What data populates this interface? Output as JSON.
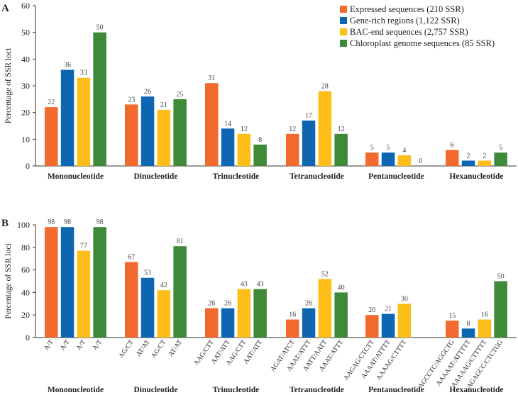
{
  "chart_data": [
    {
      "type": "bar",
      "panel_label": "A",
      "ylabel": "Percentage of SSR loci",
      "ylim": [
        0,
        60
      ],
      "yticks": [
        0,
        10,
        20,
        30,
        40,
        50,
        60
      ],
      "grid": false,
      "legend_position": "top-right",
      "categories": [
        "Mononucleotide",
        "Dinucleotide",
        "Trinucleotide",
        "Tetranucleotide",
        "Pentanucleotide",
        "Hexanucleotide"
      ],
      "series": [
        {
          "name": "Expressed sequences (210 SSR)",
          "color": "#F26A2E",
          "values": [
            22,
            23,
            31,
            12,
            5,
            6
          ],
          "labels": [
            "22",
            "23",
            "31",
            "12",
            "5",
            "6"
          ]
        },
        {
          "name": "Gene-rich regions (1,122 SSR)",
          "color": "#0E66B3",
          "values": [
            36,
            26,
            14,
            17,
            5,
            2
          ],
          "labels": [
            "36",
            "26",
            "14",
            "17",
            "5",
            "2"
          ]
        },
        {
          "name": "BAC-end sequences (2,757 SSR)",
          "color": "#FDBE19",
          "values": [
            33,
            21,
            12,
            28,
            4,
            2
          ],
          "labels": [
            "33",
            "21",
            "12",
            "28",
            "4",
            "2"
          ]
        },
        {
          "name": "Chloroplast genome sequences (85 SSR)",
          "color": "#3E8A39",
          "values": [
            50,
            25,
            8,
            12,
            0,
            5
          ],
          "labels": [
            "50",
            "25",
            "8",
            "12",
            "0",
            "5"
          ]
        }
      ]
    },
    {
      "type": "bar",
      "panel_label": "B",
      "ylabel": "Percentage of SSR loci",
      "ylim": [
        0,
        100
      ],
      "yticks": [
        0,
        20,
        40,
        60,
        80,
        100
      ],
      "grid": false,
      "groups": [
        {
          "name": "Mononucleotide",
          "bars": [
            {
              "series": 0,
              "motif": "A/T",
              "value": 98
            },
            {
              "series": 1,
              "motif": "A/T",
              "value": 98
            },
            {
              "series": 2,
              "motif": "A/T",
              "value": 77
            },
            {
              "series": 3,
              "motif": "A/T",
              "value": 98
            }
          ]
        },
        {
          "name": "Dinucleotide",
          "bars": [
            {
              "series": 0,
              "motif": "AG/CT",
              "value": 67
            },
            {
              "series": 1,
              "motif": "AT/AT",
              "value": 53
            },
            {
              "series": 2,
              "motif": "AG/CT",
              "value": 42
            },
            {
              "series": 3,
              "motif": "AT/AT",
              "value": 81
            }
          ]
        },
        {
          "name": "Trinucleotide",
          "bars": [
            {
              "series": 0,
              "motif": "AAG/CTT",
              "value": 26
            },
            {
              "series": 1,
              "motif": "AAT/ATT",
              "value": 26
            },
            {
              "series": 2,
              "motif": "AAG/CTT",
              "value": 43
            },
            {
              "series": 3,
              "motif": "AAT/ATT",
              "value": 43
            }
          ]
        },
        {
          "name": "Tetranucleotide",
          "bars": [
            {
              "series": 0,
              "motif": "AGAT/ATCT",
              "value": 16
            },
            {
              "series": 1,
              "motif": "AAAT/ATTT",
              "value": 26
            },
            {
              "series": 2,
              "motif": "AATT/AATT",
              "value": 52
            },
            {
              "series": 3,
              "motif": "AAAT/ATTT",
              "value": 40
            }
          ]
        },
        {
          "name": "Pentanucleotide",
          "bars": [
            {
              "series": 0,
              "motif": "AAGAG/CTCTT",
              "value": 20
            },
            {
              "series": 1,
              "motif": "AAAAT/ATTTT",
              "value": 21
            },
            {
              "series": 2,
              "motif": "AAAAG/CTTTT",
              "value": 30
            },
            {
              "series": 3,
              "motif": "",
              "value": null
            }
          ]
        },
        {
          "name": "Hexanucleotide",
          "bars": [
            {
              "series": 0,
              "motif": "AGCCTC/AGGCTG",
              "value": 15
            },
            {
              "series": 1,
              "motif": "AAAAAT/ATTTTT",
              "value": 8
            },
            {
              "series": 2,
              "motif": "AAAAAG/CTTTTT",
              "value": 16
            },
            {
              "series": 3,
              "motif": "AGAGCC/CTCTGG",
              "value": 50
            }
          ]
        }
      ]
    }
  ]
}
